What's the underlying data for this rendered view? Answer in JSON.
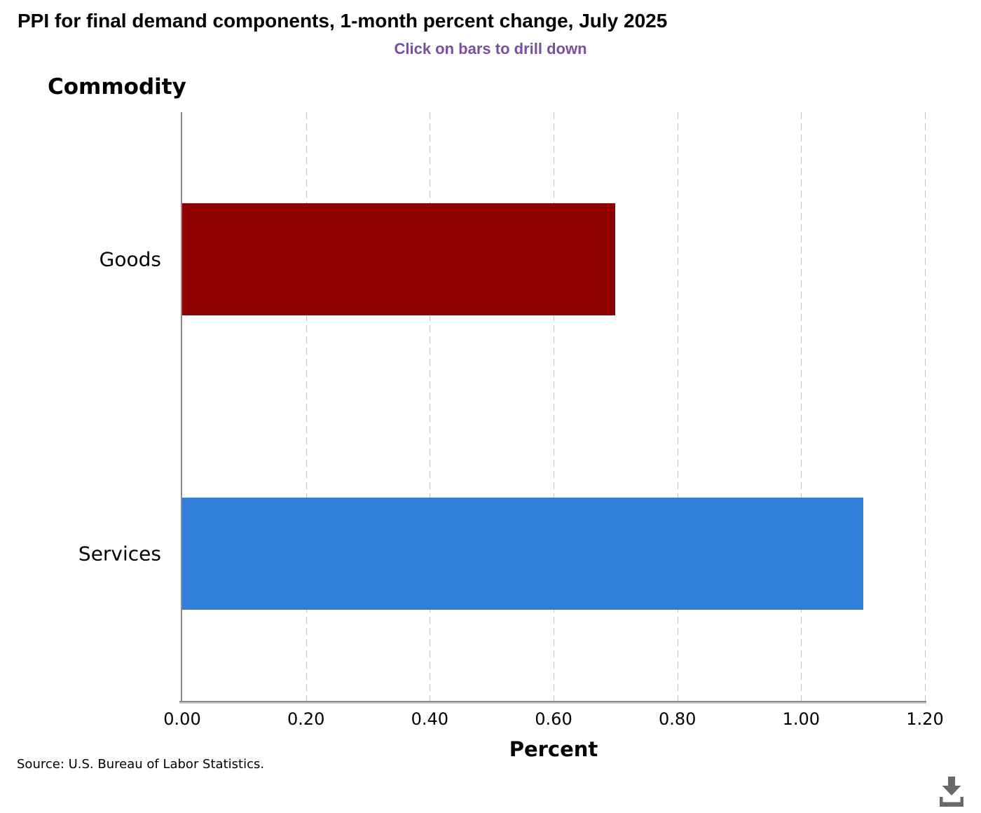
{
  "header": {
    "title": "PPI for final demand components, 1-month percent change, July 2025",
    "subtitle": "Click on bars to drill down"
  },
  "chart_data": {
    "type": "bar",
    "orientation": "horizontal",
    "group_label": "Commodity",
    "categories": [
      "Goods",
      "Services"
    ],
    "values": [
      0.7,
      1.1
    ],
    "bar_colors": [
      "#910000",
      "#2f7ed8"
    ],
    "title": "PPI for final demand components, 1-month percent change, July 2025",
    "xlabel": "Percent",
    "ylabel": "Commodity",
    "xlim": [
      0,
      1.2
    ],
    "x_ticks": [
      "0.00",
      "0.20",
      "0.40",
      "0.60",
      "0.80",
      "1.00",
      "1.20"
    ],
    "grid": "vertical-dashed",
    "legend": "none"
  },
  "footer": {
    "source": "Source: U.S. Bureau of Labor Statistics.",
    "download_icon": "download-icon"
  },
  "colors": {
    "subtitle": "#7a4f9f",
    "axis": "#8a8a8a",
    "gridline": "#c3c3c3",
    "icon": "#696969"
  }
}
